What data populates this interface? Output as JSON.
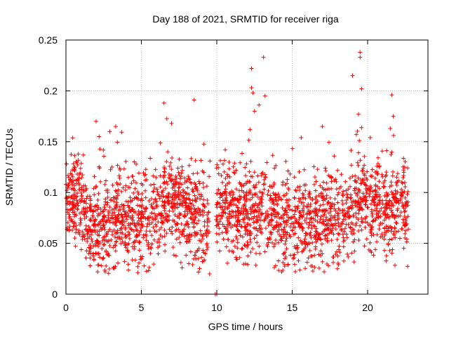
{
  "chart_data": {
    "type": "scatter",
    "title": "Day 188 of 2021, SRMTID for receiver riga",
    "xlabel": "GPS time / hours",
    "ylabel": "SRMTID / TECUs",
    "xlim": [
      0,
      24
    ],
    "ylim": [
      0,
      0.25
    ],
    "xticks": [
      0,
      5,
      10,
      15,
      20
    ],
    "yticks": [
      0,
      0.05,
      0.1,
      0.15,
      0.2,
      0.25
    ],
    "xtick_labels": [
      "0",
      "5",
      "10",
      "15",
      "20"
    ],
    "ytick_labels": [
      "0",
      "0.05",
      "0.1",
      "0.15",
      "0.2",
      "0.25"
    ],
    "grid": true,
    "marker": "+",
    "series": [
      {
        "name": "SRMTID",
        "color": "#ff0000",
        "x_range": [
          0,
          22.7
        ],
        "baseline_profile": [
          {
            "x": 0.0,
            "y": 0.092
          },
          {
            "x": 0.5,
            "y": 0.095
          },
          {
            "x": 1.0,
            "y": 0.082
          },
          {
            "x": 1.5,
            "y": 0.068
          },
          {
            "x": 2.0,
            "y": 0.066
          },
          {
            "x": 2.5,
            "y": 0.066
          },
          {
            "x": 3.0,
            "y": 0.07
          },
          {
            "x": 3.5,
            "y": 0.073
          },
          {
            "x": 4.0,
            "y": 0.075
          },
          {
            "x": 4.5,
            "y": 0.07
          },
          {
            "x": 5.0,
            "y": 0.07
          },
          {
            "x": 5.5,
            "y": 0.073
          },
          {
            "x": 6.0,
            "y": 0.078
          },
          {
            "x": 6.5,
            "y": 0.085
          },
          {
            "x": 7.0,
            "y": 0.09
          },
          {
            "x": 7.5,
            "y": 0.085
          },
          {
            "x": 8.0,
            "y": 0.082
          },
          {
            "x": 8.5,
            "y": 0.078
          },
          {
            "x": 9.0,
            "y": 0.075
          },
          {
            "x": 9.5,
            "y": 0.072
          },
          {
            "x": 10.0,
            "y": 0.082
          },
          {
            "x": 10.5,
            "y": 0.085
          },
          {
            "x": 11.0,
            "y": 0.08
          },
          {
            "x": 11.5,
            "y": 0.078
          },
          {
            "x": 12.0,
            "y": 0.075
          },
          {
            "x": 12.5,
            "y": 0.08
          },
          {
            "x": 13.0,
            "y": 0.085
          },
          {
            "x": 13.5,
            "y": 0.078
          },
          {
            "x": 14.0,
            "y": 0.07
          },
          {
            "x": 14.5,
            "y": 0.065
          },
          {
            "x": 15.0,
            "y": 0.066
          },
          {
            "x": 15.5,
            "y": 0.068
          },
          {
            "x": 16.0,
            "y": 0.066
          },
          {
            "x": 16.5,
            "y": 0.07
          },
          {
            "x": 17.0,
            "y": 0.075
          },
          {
            "x": 17.5,
            "y": 0.075
          },
          {
            "x": 18.0,
            "y": 0.073
          },
          {
            "x": 18.5,
            "y": 0.075
          },
          {
            "x": 19.0,
            "y": 0.085
          },
          {
            "x": 19.5,
            "y": 0.09
          },
          {
            "x": 20.0,
            "y": 0.09
          },
          {
            "x": 20.5,
            "y": 0.09
          },
          {
            "x": 21.0,
            "y": 0.085
          },
          {
            "x": 21.5,
            "y": 0.082
          },
          {
            "x": 22.0,
            "y": 0.085
          },
          {
            "x": 22.7,
            "y": 0.08
          }
        ],
        "spread": 0.022,
        "notable_points": [
          {
            "x": 19.5,
            "y": 0.238
          },
          {
            "x": 19.5,
            "y": 0.233
          },
          {
            "x": 13.1,
            "y": 0.233
          },
          {
            "x": 12.3,
            "y": 0.222
          },
          {
            "x": 19.0,
            "y": 0.215
          },
          {
            "x": 12.3,
            "y": 0.203
          },
          {
            "x": 19.6,
            "y": 0.202
          },
          {
            "x": 12.4,
            "y": 0.198
          },
          {
            "x": 21.6,
            "y": 0.196
          },
          {
            "x": 13.2,
            "y": 0.195
          },
          {
            "x": 8.5,
            "y": 0.191
          },
          {
            "x": 6.5,
            "y": 0.188
          },
          {
            "x": 12.8,
            "y": 0.186
          },
          {
            "x": 12.5,
            "y": 0.18
          },
          {
            "x": 19.4,
            "y": 0.177
          },
          {
            "x": 21.7,
            "y": 0.175
          },
          {
            "x": 2.0,
            "y": 0.17
          },
          {
            "x": 7.0,
            "y": 0.168
          },
          {
            "x": 3.3,
            "y": 0.165
          },
          {
            "x": 17.0,
            "y": 0.165
          },
          {
            "x": 12.2,
            "y": 0.162
          },
          {
            "x": 2.9,
            "y": 0.16
          },
          {
            "x": 2.2,
            "y": 0.155
          },
          {
            "x": 15.6,
            "y": 0.154
          },
          {
            "x": 21.5,
            "y": 0.163
          },
          {
            "x": 9.9,
            "y": 0.0
          },
          {
            "x": 10.0,
            "y": 0.0
          },
          {
            "x": 1.6,
            "y": 0.028
          },
          {
            "x": 2.6,
            "y": 0.022
          },
          {
            "x": 14.3,
            "y": 0.022
          },
          {
            "x": 17.4,
            "y": 0.028
          },
          {
            "x": 7.7,
            "y": 0.026
          },
          {
            "x": 18.0,
            "y": 0.025
          },
          {
            "x": 13.9,
            "y": 0.028
          },
          {
            "x": 8.4,
            "y": 0.029
          }
        ]
      }
    ]
  }
}
